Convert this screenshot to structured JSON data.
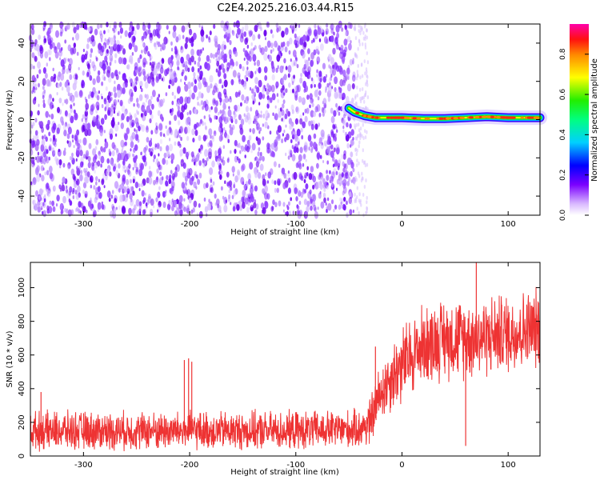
{
  "title": "C2E4.2025.216.03.44.R15",
  "chart_data": [
    {
      "type": "heatmap",
      "xlabel": "Height of straight line (km)",
      "ylabel": "Frequency (Hz)",
      "xlim": [
        -350,
        130
      ],
      "ylim": [
        -50,
        50
      ],
      "xticks": [
        -300,
        -200,
        -100,
        0,
        100
      ],
      "yticks": [
        -40,
        -20,
        0,
        20,
        40
      ],
      "colorbar": {
        "label": "Normalized spectral amplitude",
        "range": [
          0.0,
          0.95
        ],
        "ticks": [
          "0.0",
          "0.2",
          "0.4",
          "0.6",
          "0.8"
        ],
        "tick_values": [
          0.0,
          0.2,
          0.4,
          0.6,
          0.8
        ]
      },
      "noise_region": {
        "x": [
          -350,
          -45
        ],
        "level": 0.05
      },
      "transition_region": {
        "x": [
          -45,
          -32
        ],
        "level": 0.03
      },
      "signal_line": [
        {
          "x": -50,
          "y": 6
        },
        {
          "x": -45,
          "y": 4
        },
        {
          "x": -35,
          "y": 2
        },
        {
          "x": -25,
          "y": 1
        },
        {
          "x": -10,
          "y": 1
        },
        {
          "x": 0,
          "y": 1
        },
        {
          "x": 20,
          "y": 0.5
        },
        {
          "x": 40,
          "y": 0.5
        },
        {
          "x": 60,
          "y": 1
        },
        {
          "x": 80,
          "y": 1.5
        },
        {
          "x": 100,
          "y": 1
        },
        {
          "x": 130,
          "y": 1
        }
      ],
      "signal_peak_amplitude": 0.9,
      "grid": false
    },
    {
      "type": "line",
      "xlabel": "Height of straight line (km)",
      "ylabel": "SNR (10 * v/v)",
      "xlim": [
        -350,
        130
      ],
      "ylim": [
        0,
        1150
      ],
      "xticks": [
        -300,
        -200,
        -100,
        0,
        100
      ],
      "yticks": [
        0,
        200,
        400,
        600,
        800,
        1000
      ],
      "color": "#ee3333",
      "segments": [
        {
          "x": -350,
          "y": 150
        },
        {
          "x": -200,
          "y": 150
        },
        {
          "x": -100,
          "y": 150
        },
        {
          "x": -40,
          "y": 160
        },
        {
          "x": -30,
          "y": 200
        },
        {
          "x": -20,
          "y": 380
        },
        {
          "x": -10,
          "y": 470
        },
        {
          "x": 0,
          "y": 540
        },
        {
          "x": 20,
          "y": 660
        },
        {
          "x": 40,
          "y": 700
        },
        {
          "x": 60,
          "y": 700
        },
        {
          "x": 100,
          "y": 730
        },
        {
          "x": 130,
          "y": 760
        }
      ],
      "noise_amplitude_before": 110,
      "noise_amplitude_after": 230,
      "spikes": [
        {
          "x": -205,
          "y": 570
        },
        {
          "x": -201,
          "y": 580
        },
        {
          "x": -198,
          "y": 560
        },
        {
          "x": -340,
          "y": 380
        },
        {
          "x": -25,
          "y": 650
        },
        {
          "x": 70,
          "y": 1150
        },
        {
          "x": 60,
          "y": 60
        }
      ],
      "grid": false
    }
  ]
}
